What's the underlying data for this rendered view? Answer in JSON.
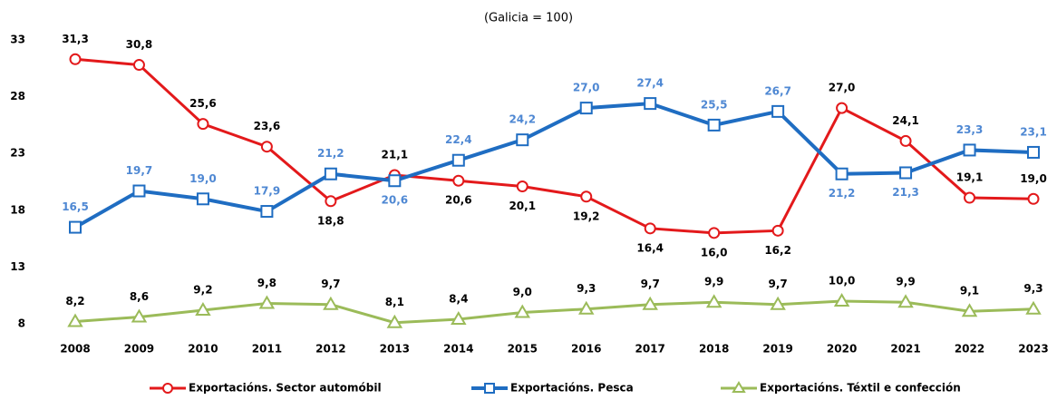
{
  "chart_data": {
    "type": "line",
    "subtitle": "(Galicia = 100)",
    "categories": [
      "2008",
      "2009",
      "2010",
      "2011",
      "2012",
      "2013",
      "2014",
      "2015",
      "2016",
      "2017",
      "2018",
      "2019",
      "2020",
      "2021",
      "2022",
      "2023"
    ],
    "series": [
      {
        "name": "Exportacións. Sector automóbil",
        "color": "#e3191b",
        "marker": "circle",
        "label_color": "#000000",
        "values": [
          31.3,
          30.8,
          25.6,
          23.6,
          18.8,
          21.1,
          20.6,
          20.1,
          19.2,
          16.4,
          16.0,
          16.2,
          27.0,
          24.1,
          19.1,
          19.0
        ],
        "value_labels": [
          "31,3",
          "30,8",
          "25,6",
          "23,6",
          "18,8",
          "21,1",
          "20,6",
          "20,1",
          "19,2",
          "16,4",
          "16,0",
          "16,2",
          "27,0",
          "24,1",
          "19,1",
          "19,0"
        ]
      },
      {
        "name": "Exportacións. Pesca",
        "color": "#1f6dc2",
        "marker": "square",
        "label_color": "#4f88d3",
        "values": [
          16.5,
          19.7,
          19.0,
          17.9,
          21.2,
          20.6,
          22.4,
          24.2,
          27.0,
          27.4,
          25.5,
          26.7,
          21.2,
          21.3,
          23.3,
          23.1
        ],
        "value_labels": [
          "16,5",
          "19,7",
          "19,0",
          "17,9",
          "21,2",
          "20,6",
          "22,4",
          "24,2",
          "27,0",
          "27,4",
          "25,5",
          "26,7",
          "21,2",
          "21,3",
          "23,3",
          "23,1"
        ]
      },
      {
        "name": "Exportacións. Téxtil e confección",
        "color": "#9bbb59",
        "marker": "triangle",
        "label_color": "#000000",
        "values": [
          8.2,
          8.6,
          9.2,
          9.8,
          9.7,
          8.1,
          8.4,
          9.0,
          9.3,
          9.7,
          9.9,
          9.7,
          10.0,
          9.9,
          9.1,
          9.3
        ],
        "value_labels": [
          "8,2",
          "8,6",
          "9,2",
          "9,8",
          "9,7",
          "8,1",
          "8,4",
          "9,0",
          "9,3",
          "9,7",
          "9,9",
          "9,7",
          "10,0",
          "9,9",
          "9,1",
          "9,3"
        ]
      }
    ],
    "ylim": [
      8,
      33
    ],
    "yticks": [
      8,
      13,
      18,
      23,
      28,
      33
    ],
    "grid": false,
    "legend": "bottom"
  }
}
